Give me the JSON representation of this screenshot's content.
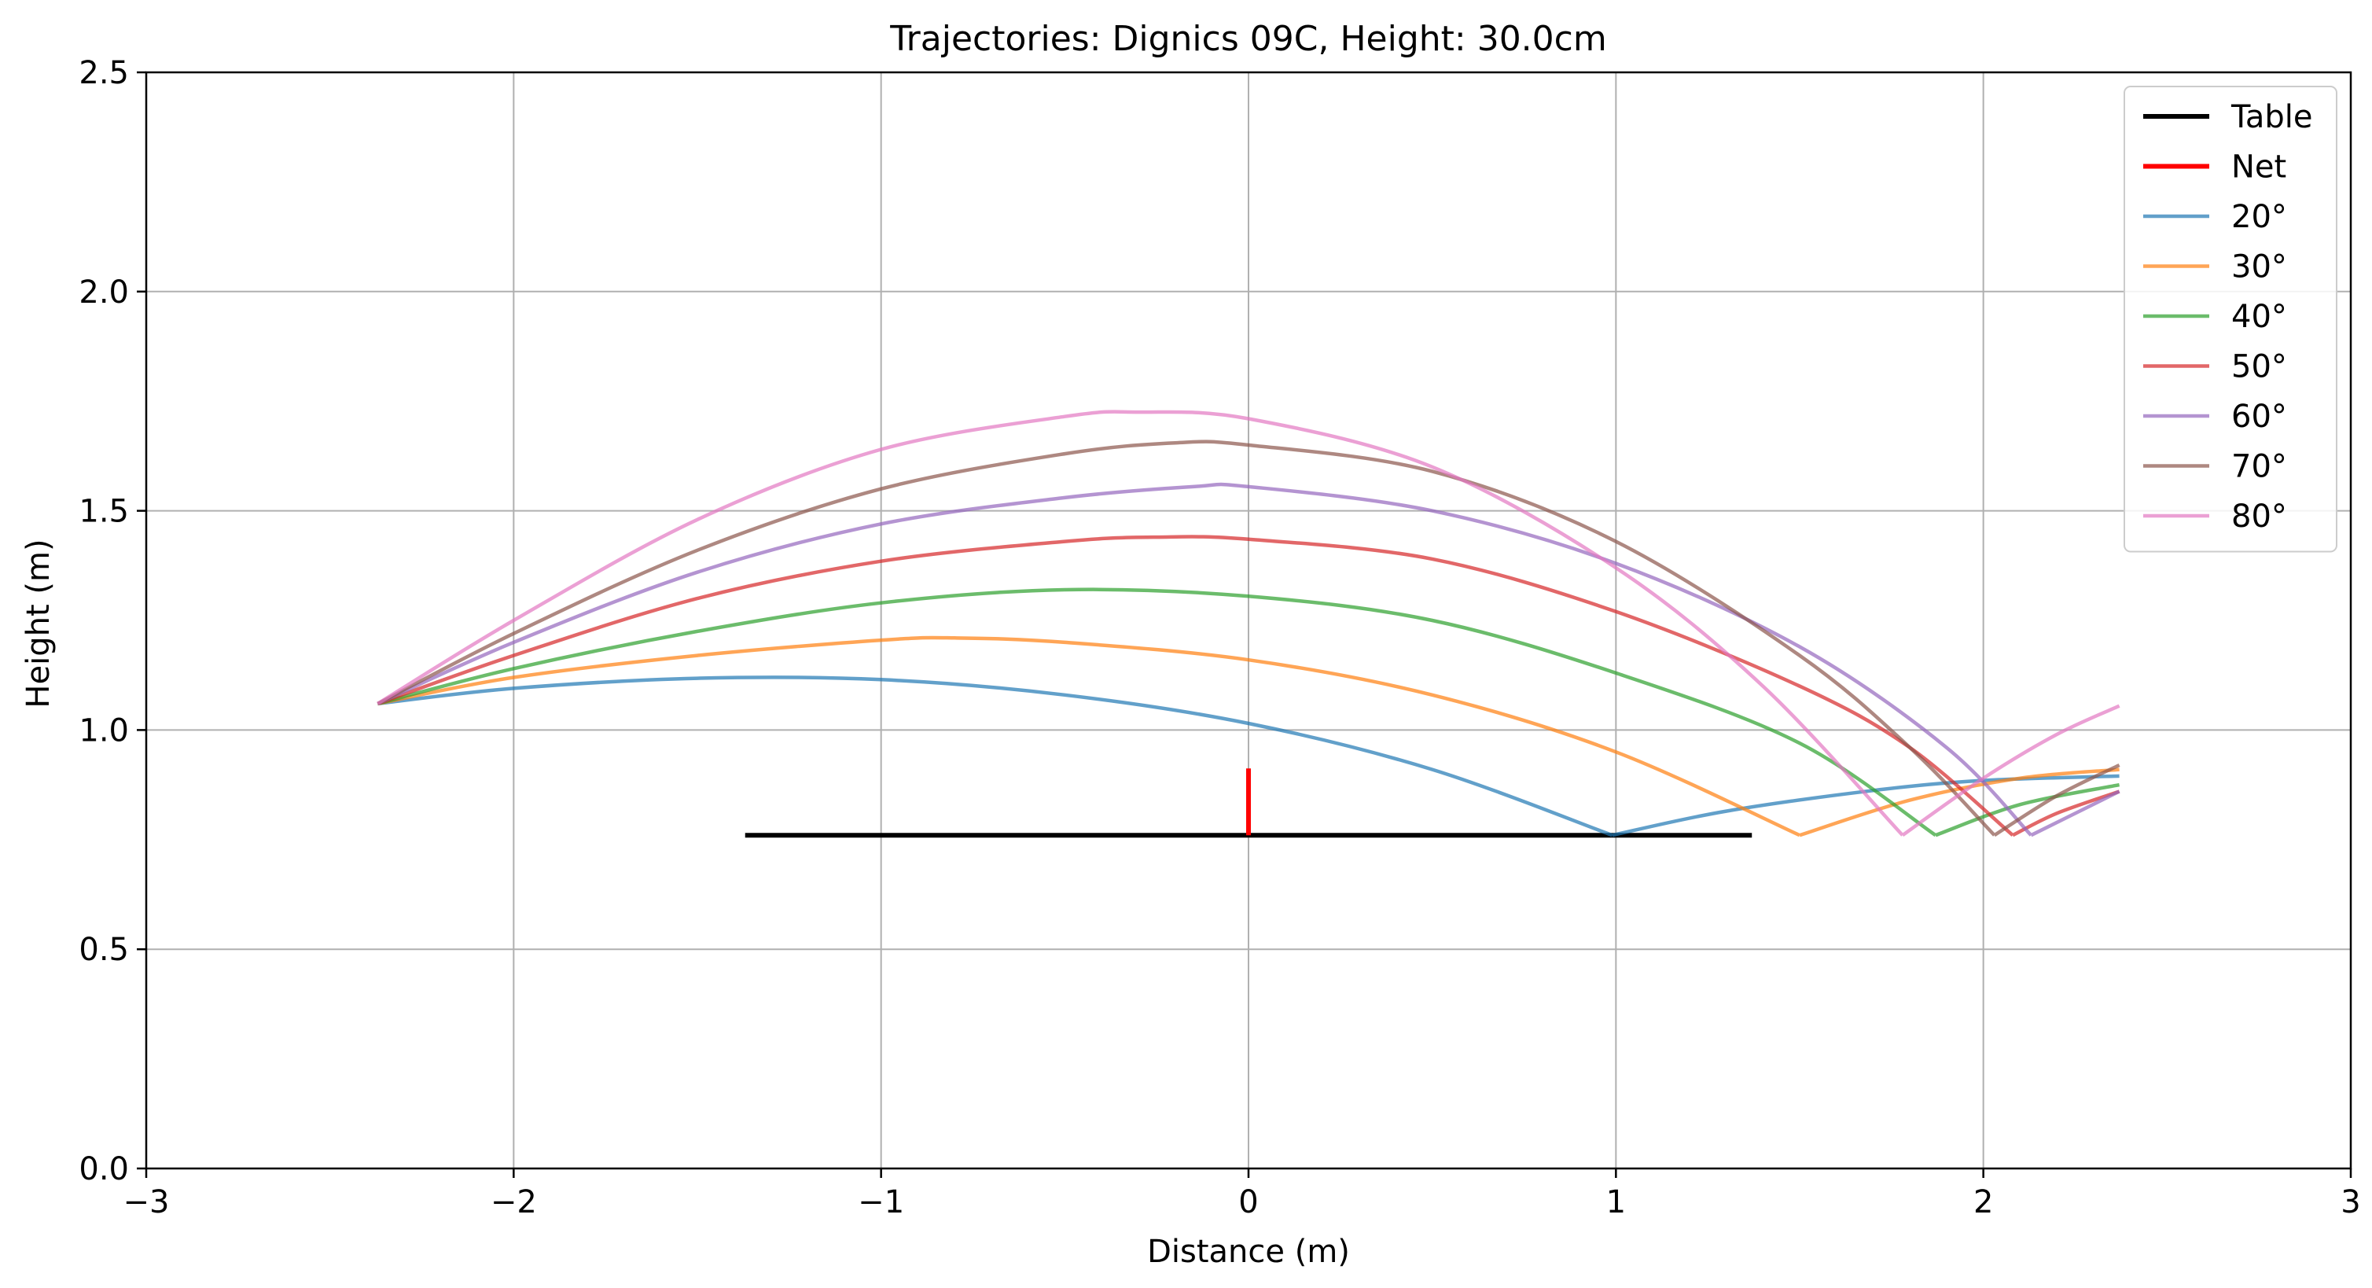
{
  "chart_data": {
    "type": "line",
    "title": "Trajectories: Dignics 09C, Height: 30.0cm",
    "xlabel": "Distance (m)",
    "ylabel": "Height (m)",
    "xlim": [
      -3,
      3
    ],
    "ylim": [
      0,
      2.5
    ],
    "xticks": [
      -3,
      -2,
      -1,
      0,
      1,
      2,
      3
    ],
    "xtick_labels": [
      "−3",
      "−2",
      "−1",
      "0",
      "1",
      "2",
      "3"
    ],
    "yticks": [
      0,
      0.5,
      1.0,
      1.5,
      2.0,
      2.5
    ],
    "ytick_labels": [
      "0.0",
      "0.5",
      "1.0",
      "1.5",
      "2.0",
      "2.5"
    ],
    "grid": true,
    "legend_position": "top-right",
    "table": {
      "name": "Table",
      "color": "#000000",
      "x": [
        -1.37,
        1.37
      ],
      "y": [
        0.76,
        0.76
      ]
    },
    "net": {
      "name": "Net",
      "color": "#ff0000",
      "x": [
        0,
        0
      ],
      "y": [
        0.76,
        0.9125
      ]
    },
    "series": [
      {
        "name": "20°",
        "color": "#1f77b4",
        "x": [
          -2.37,
          -2.0,
          -1.5,
          -1.0,
          -0.5,
          0.0,
          0.5,
          0.99,
          1.3,
          1.7,
          2.0,
          2.37
        ],
        "y": [
          1.06,
          1.095,
          1.118,
          1.115,
          1.08,
          1.015,
          0.91,
          0.76,
          0.815,
          0.862,
          0.885,
          0.895
        ]
      },
      {
        "name": "30°",
        "color": "#ff7f0e",
        "x": [
          -2.37,
          -2.0,
          -1.5,
          -1.0,
          -0.8,
          -0.5,
          0.0,
          0.5,
          1.0,
          1.5,
          1.8,
          2.1,
          2.37
        ],
        "y": [
          1.06,
          1.12,
          1.17,
          1.205,
          1.21,
          1.2,
          1.16,
          1.08,
          0.95,
          0.76,
          0.84,
          0.89,
          0.91
        ]
      },
      {
        "name": "40°",
        "color": "#2ca02c",
        "x": [
          -2.37,
          -2.0,
          -1.5,
          -1.0,
          -0.5,
          0.0,
          0.5,
          1.0,
          1.5,
          1.87,
          2.1,
          2.37
        ],
        "y": [
          1.06,
          1.14,
          1.225,
          1.29,
          1.32,
          1.305,
          1.25,
          1.13,
          0.97,
          0.76,
          0.83,
          0.875
        ]
      },
      {
        "name": "50°",
        "color": "#d62728",
        "x": [
          -2.37,
          -2.0,
          -1.5,
          -1.0,
          -0.5,
          -0.25,
          0.0,
          0.5,
          1.0,
          1.5,
          1.8,
          2.08,
          2.2,
          2.37
        ],
        "y": [
          1.06,
          1.17,
          1.3,
          1.385,
          1.43,
          1.44,
          1.435,
          1.39,
          1.27,
          1.1,
          0.96,
          0.76,
          0.81,
          0.86
        ]
      },
      {
        "name": "60°",
        "color": "#9467bd",
        "x": [
          -2.37,
          -2.0,
          -1.5,
          -1.0,
          -0.5,
          -0.15,
          0.0,
          0.5,
          1.0,
          1.5,
          1.9,
          2.13,
          2.37
        ],
        "y": [
          1.06,
          1.2,
          1.36,
          1.47,
          1.53,
          1.555,
          1.555,
          1.5,
          1.38,
          1.19,
          0.96,
          0.76,
          0.86
        ]
      },
      {
        "name": "70°",
        "color": "#8c564b",
        "x": [
          -2.37,
          -2.0,
          -1.5,
          -1.0,
          -0.5,
          -0.2,
          0.0,
          0.5,
          1.0,
          1.5,
          1.8,
          2.03,
          2.2,
          2.37
        ],
        "y": [
          1.06,
          1.22,
          1.41,
          1.55,
          1.63,
          1.655,
          1.65,
          1.59,
          1.43,
          1.17,
          0.96,
          0.76,
          0.85,
          0.92
        ]
      },
      {
        "name": "80°",
        "color": "#e377c2",
        "x": [
          -2.37,
          -2.0,
          -1.5,
          -1.0,
          -0.5,
          -0.3,
          0.0,
          0.5,
          1.0,
          1.4,
          1.78,
          2.0,
          2.2,
          2.37
        ],
        "y": [
          1.06,
          1.25,
          1.48,
          1.64,
          1.715,
          1.725,
          1.71,
          1.6,
          1.37,
          1.1,
          0.76,
          0.89,
          0.99,
          1.055
        ]
      }
    ]
  }
}
